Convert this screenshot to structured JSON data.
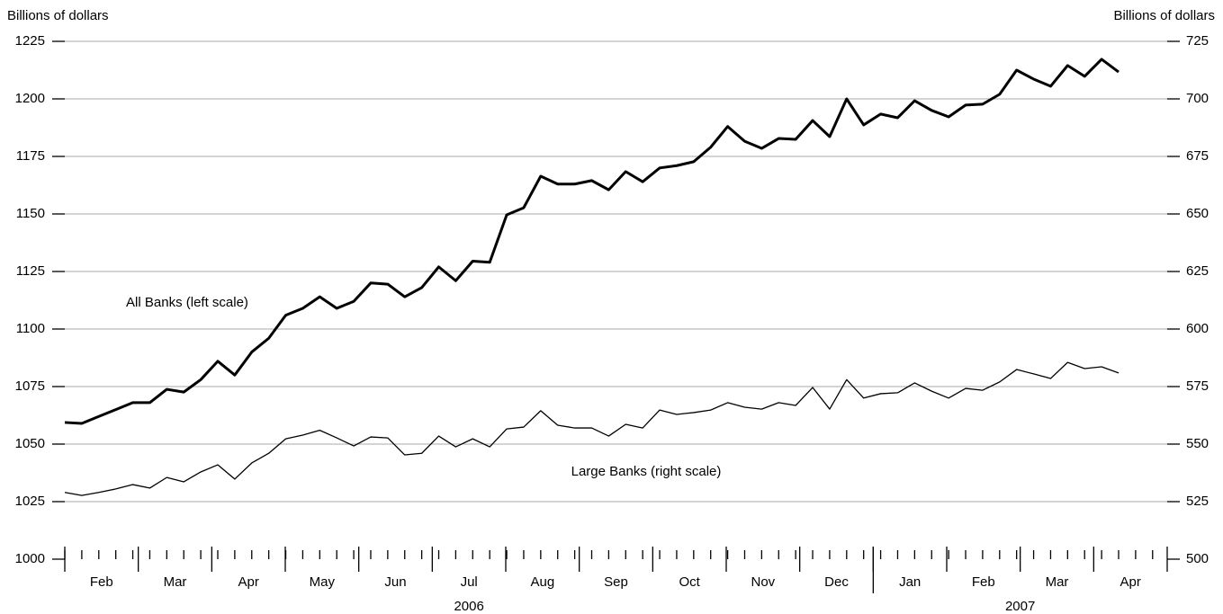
{
  "chart_data": {
    "type": "line",
    "ylabel": "Billions of dollars",
    "y2label": "Billions of dollars",
    "months": [
      "Feb",
      "Mar",
      "Apr",
      "May",
      "Jun",
      "Jul",
      "Aug",
      "Sep",
      "Oct",
      "Nov",
      "Dec",
      "Jan",
      "Feb",
      "Mar",
      "Apr"
    ],
    "years": [
      "2006",
      "2007"
    ],
    "ylim": [
      1000,
      1225
    ],
    "yticks": [
      1000,
      1025,
      1050,
      1075,
      1100,
      1125,
      1150,
      1175,
      1200,
      1225
    ],
    "y2lim": [
      500,
      725
    ],
    "y2ticks": [
      500,
      525,
      550,
      575,
      600,
      625,
      650,
      675,
      700,
      725
    ],
    "grid": true,
    "series": [
      {
        "name": "All Banks (left scale)",
        "color": "#000000",
        "linewidth": 3,
        "values": [
          1059.4,
          1059,
          1062,
          1065,
          1068,
          1068,
          1073.8,
          1072.6,
          1078,
          1086,
          1080,
          1090,
          1096,
          1106,
          1109,
          1114,
          1109,
          1112,
          1120,
          1119.5,
          1114,
          1118,
          1127,
          1121,
          1129.5,
          1129,
          1149.6,
          1152.7,
          1166.4,
          1163,
          1163,
          1164.5,
          1160.5,
          1168.4,
          1164,
          1170,
          1171,
          1172.7,
          1179,
          1188,
          1181.6,
          1178.5,
          1182.8,
          1182.4,
          1190.6,
          1183.6,
          1200,
          1188.7,
          1193.4,
          1191.8,
          1199.2,
          1195,
          1192.2,
          1197.3,
          1197.7,
          1202,
          1212.5,
          1208.6,
          1205.5,
          1214.5,
          1209.8,
          1217.2,
          1211.7
        ]
      },
      {
        "name": "Large Banks (right scale)",
        "color": "#000000",
        "linewidth": 1.3,
        "axis": "y2",
        "values": [
          529,
          527.7,
          529,
          530.5,
          532.4,
          530.9,
          535.5,
          533.6,
          537.9,
          541,
          534.8,
          541.8,
          546,
          552.3,
          553.9,
          556,
          552.7,
          549.2,
          553.1,
          552.7,
          545.3,
          546,
          553.5,
          548.8,
          552.3,
          548.8,
          556.6,
          557.4,
          564.5,
          558.2,
          557,
          557,
          553.5,
          558.6,
          557,
          564.8,
          562.9,
          563.7,
          564.8,
          568,
          566,
          565.2,
          568,
          566.8,
          574.6,
          565.2,
          578,
          570,
          571.9,
          572.3,
          576.6,
          573,
          570,
          574.2,
          573.4,
          577,
          582.4,
          580.5,
          578.5,
          585.5,
          582.8,
          583.6,
          580.9
        ]
      }
    ]
  }
}
